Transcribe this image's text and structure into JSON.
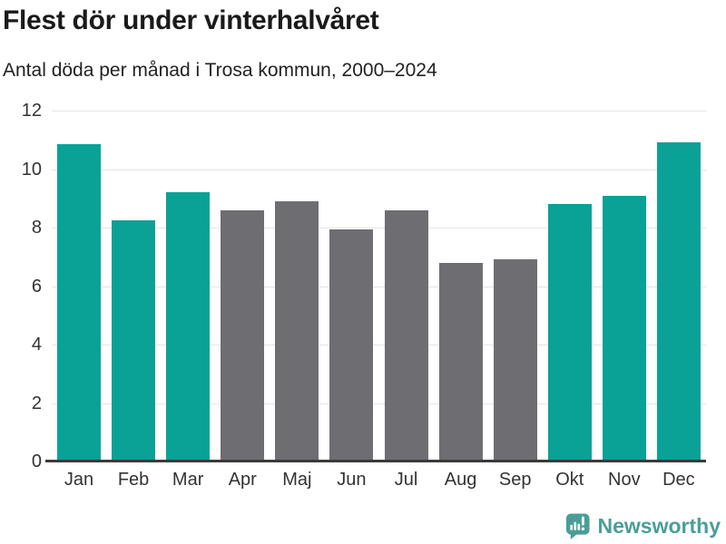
{
  "header": {
    "title": "Flest dör under vinterhalvåret",
    "subtitle": "Antal döda per månad i Trosa kommun, 2000–2024"
  },
  "chart_data": {
    "type": "bar",
    "title": "Flest dör under vinterhalvåret",
    "subtitle": "Antal döda per månad i Trosa kommun, 2000–2024",
    "categories": [
      "Jan",
      "Feb",
      "Mar",
      "Apr",
      "Maj",
      "Jun",
      "Jul",
      "Aug",
      "Sep",
      "Okt",
      "Nov",
      "Dec"
    ],
    "values": [
      10.85,
      8.25,
      9.2,
      8.6,
      8.9,
      7.95,
      8.6,
      6.8,
      6.9,
      8.8,
      9.1,
      10.9
    ],
    "highlighted": [
      true,
      true,
      true,
      false,
      false,
      false,
      false,
      false,
      false,
      true,
      true,
      true
    ],
    "colors": {
      "highlight": "#0aa196",
      "default": "#6e6e72",
      "gridline": "#e4e4e4",
      "axis": "#3a3a3a"
    },
    "xlabel": "",
    "ylabel": "",
    "ylim": [
      0,
      12
    ],
    "yticks": [
      0,
      2,
      4,
      6,
      8,
      10,
      12
    ],
    "grid": true,
    "legend": "none"
  },
  "footer": {
    "brand": "Newsworthy",
    "brand_color": "#4a9e98",
    "logo_icon": "speech-bubble-bar-chart-exclamation"
  }
}
